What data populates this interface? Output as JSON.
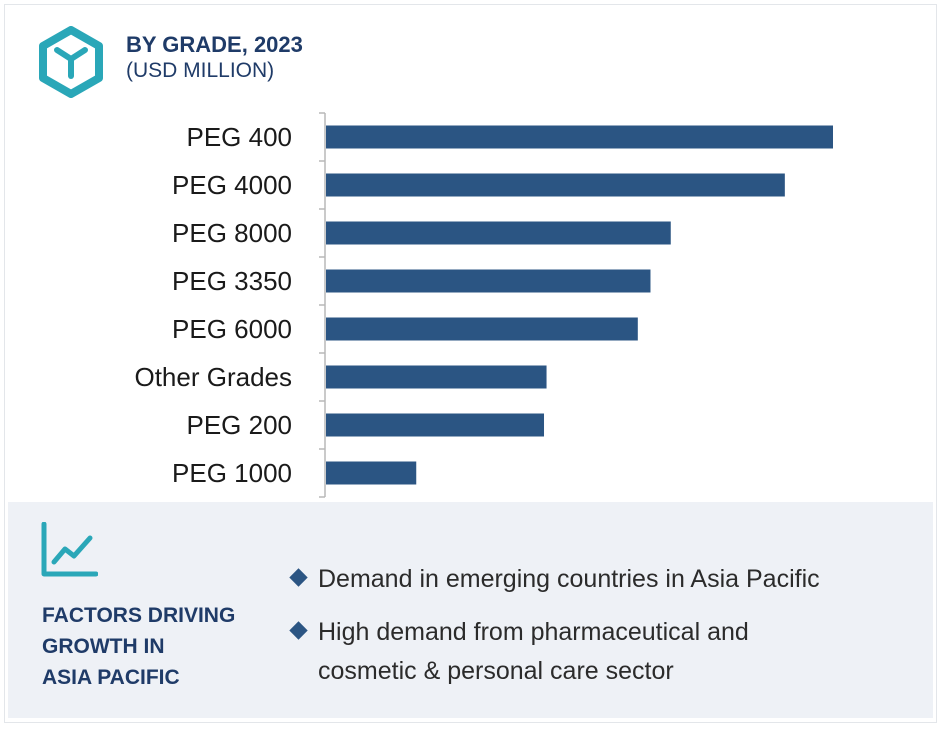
{
  "header": {
    "title": "BY GRADE, 2023",
    "subtitle": "(USD MILLION)",
    "logo_icon": "hexagon-y-logo-icon",
    "accent_color": "#2aa7b8"
  },
  "chart_data": {
    "type": "bar",
    "orientation": "horizontal",
    "categories": [
      "PEG 400",
      "PEG 4000",
      "PEG 8000",
      "PEG 3350",
      "PEG 6000",
      "Other Grades",
      "PEG 200",
      "PEG 1000"
    ],
    "values": [
      100,
      90.5,
      68,
      64,
      61.5,
      43.5,
      43,
      17.8
    ],
    "xlim": [
      0,
      100
    ],
    "bar_color": "#2b5583",
    "grid": false,
    "legend": "none",
    "axis_labels": "none"
  },
  "factors": {
    "icon": "trend-chart-icon",
    "heading_lines": [
      "FACTORS DRIVING",
      "GROWTH IN",
      "ASIA PACIFIC"
    ],
    "items": [
      {
        "lines": [
          "Demand in emerging countries in Asia Pacific"
        ]
      },
      {
        "lines": [
          "High demand from pharmaceutical and",
          "cosmetic & personal care sector"
        ]
      }
    ],
    "bullet_icon": "diamond-bullet-icon",
    "panel_color": "#eef1f6"
  }
}
